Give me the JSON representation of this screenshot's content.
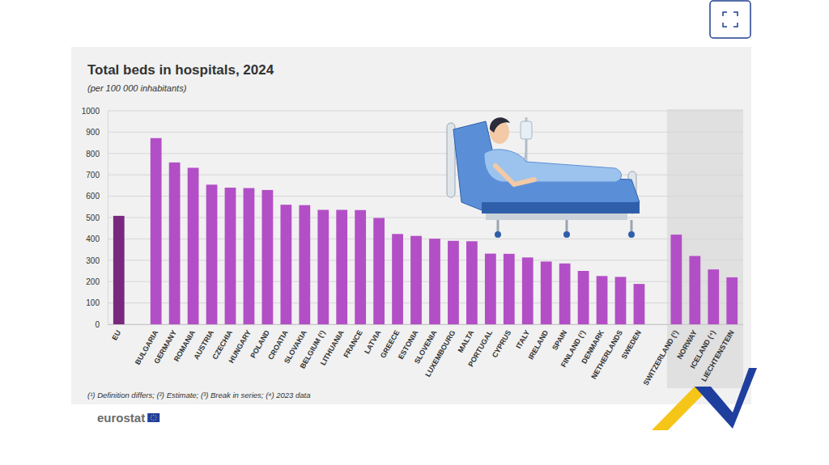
{
  "chart_data": {
    "type": "bar",
    "title": "Total beds in hospitals, 2024",
    "subtitle": "(per 100 000 inhabitants)",
    "categories": [
      "EU",
      null,
      "BULGARIA",
      "GERMANY",
      "ROMANIA",
      "AUSTRIA",
      "CZECHIA",
      "HUNGARY",
      "POLAND",
      "CROATIA",
      "SLOVAKIA",
      "BELGIUM (¹)",
      "LITHUANIA",
      "FRANCE",
      "LATVIA",
      "GREECE",
      "ESTONIA",
      "SLOVENIA",
      "LUXEMBOURG",
      "MALTA",
      "PORTUGAL",
      "CYPRUS",
      "ITALY",
      "IRELAND",
      "SPAIN",
      "FINLAND (¹)",
      "DENMARK",
      "NETHERLANDS",
      "SWEDEN",
      null,
      "SWITZERLAND (¹)",
      "NORWAY",
      "ICELAND (⁴)",
      "LIECHTENSTEIN"
    ],
    "values": [
      508,
      null,
      872,
      758,
      733,
      654,
      640,
      638,
      629,
      560,
      558,
      536,
      536,
      535,
      498,
      423,
      414,
      401,
      391,
      389,
      331,
      330,
      313,
      294,
      285,
      250,
      226,
      222,
      189,
      null,
      420,
      320,
      257,
      220
    ],
    "colors": [
      "#79297d",
      null,
      "#b24fc6",
      "#b24fc6",
      "#b24fc6",
      "#b24fc6",
      "#b24fc6",
      "#b24fc6",
      "#b24fc6",
      "#b24fc6",
      "#b24fc6",
      "#b24fc6",
      "#b24fc6",
      "#b24fc6",
      "#b24fc6",
      "#b24fc6",
      "#b24fc6",
      "#b24fc6",
      "#b24fc6",
      "#b24fc6",
      "#b24fc6",
      "#b24fc6",
      "#b24fc6",
      "#b24fc6",
      "#b24fc6",
      "#b24fc6",
      "#b24fc6",
      "#b24fc6",
      "#b24fc6",
      null,
      "#b24fc6",
      "#b24fc6",
      "#b24fc6",
      "#b24fc6"
    ],
    "ylim": [
      0,
      1000
    ],
    "yticks": [
      0,
      100,
      200,
      300,
      400,
      500,
      600,
      700,
      800,
      900,
      1000
    ],
    "grid": true,
    "footnote": "(¹) Definition differs; (²) Estimate; (³) Break in series; (⁴) 2023 data",
    "source": "eurostat"
  }
}
